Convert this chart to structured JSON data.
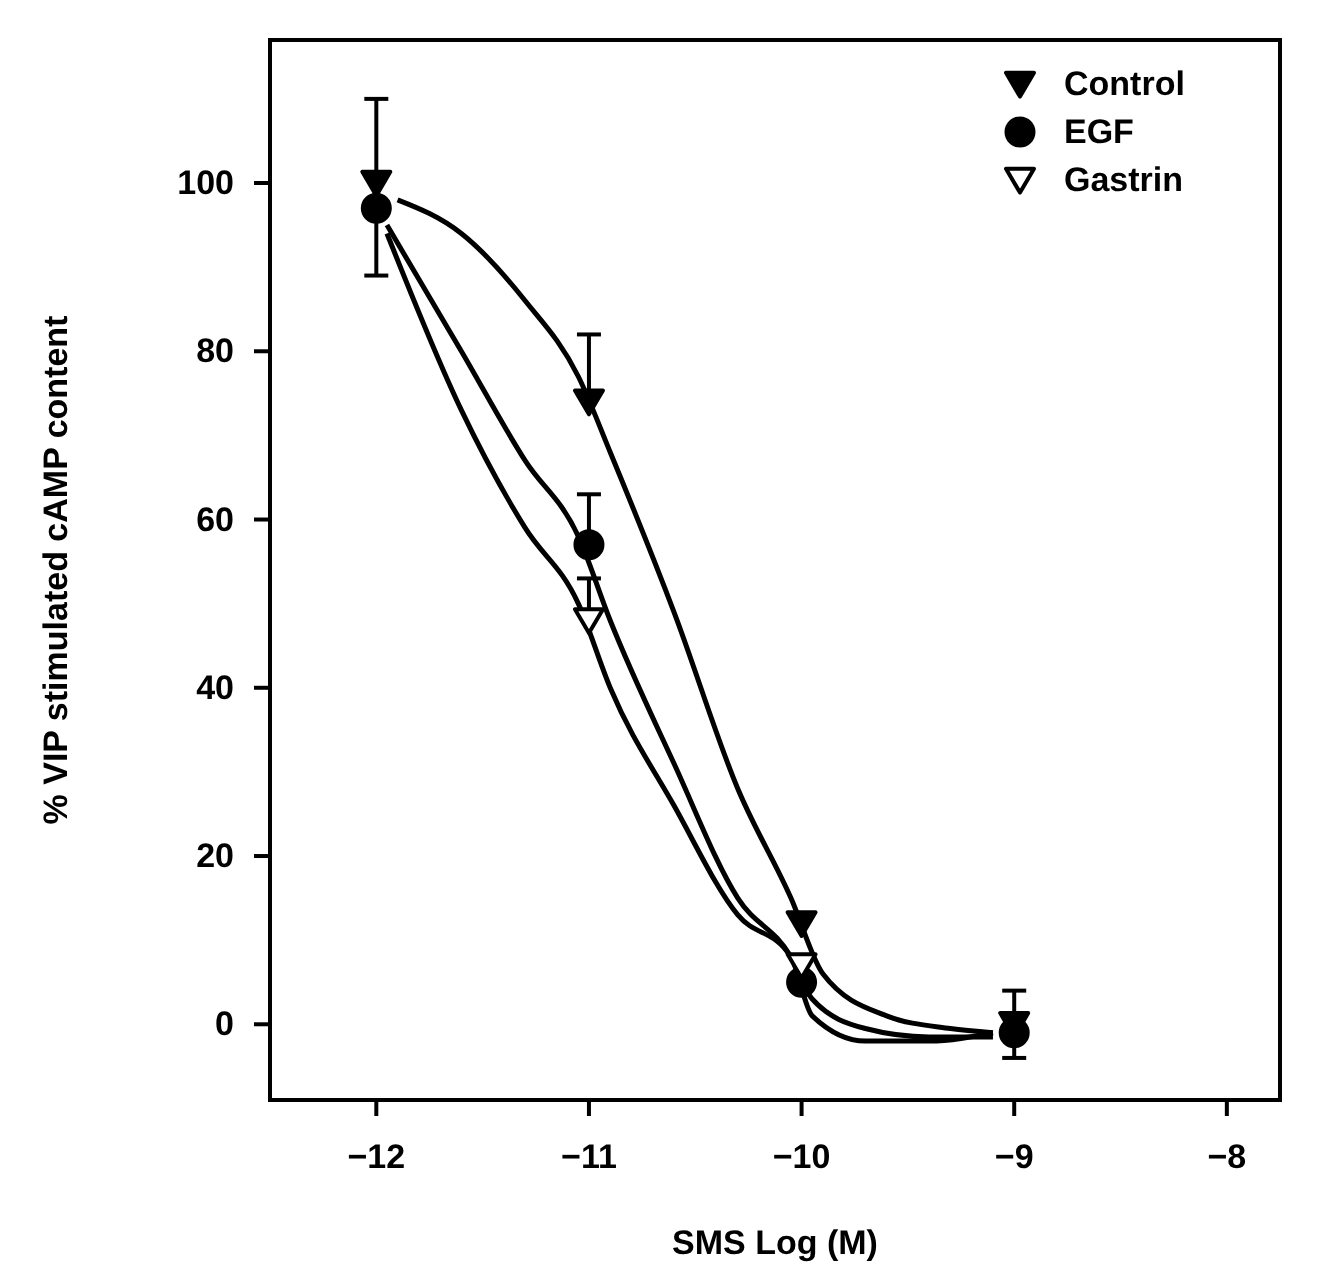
{
  "chart_data": {
    "type": "scatter",
    "xlabel": "SMS Log (M)",
    "ylabel": "% VIP stimulated cAMP content",
    "xlim": [
      -12.5,
      -7.75
    ],
    "xticks": [
      -12,
      -11,
      -10,
      -9,
      -8
    ],
    "ylim": [
      -9,
      117
    ],
    "yticks": [
      0,
      20,
      40,
      60,
      80,
      100
    ],
    "grid": false,
    "legend": "top right",
    "series": [
      {
        "type": "line",
        "color": "#000000",
        "marker": "none",
        "x": [
          -11.9,
          -11.6,
          -11.3,
          -11.05,
          -10.9,
          -10.6,
          -10.3,
          -10.05,
          -9.9,
          -9.6,
          -9.3,
          -9.1
        ],
        "values": [
          98,
          94,
          86,
          77,
          68,
          49,
          28,
          15,
          6,
          1,
          -0.5,
          -1
        ]
      },
      {
        "type": "line",
        "color": "#000000",
        "marker": "none",
        "x": [
          -11.95,
          -11.6,
          -11.3,
          -11.05,
          -10.9,
          -10.6,
          -10.3,
          -10.05,
          -9.95,
          -9.7,
          -9.4,
          -9.1
        ],
        "values": [
          95,
          80,
          67,
          58,
          48,
          31,
          15,
          8,
          3,
          -0.5,
          -1.5,
          -1.5
        ]
      },
      {
        "type": "line",
        "color": "#000000",
        "marker": "none",
        "x": [
          -11.95,
          -11.6,
          -11.3,
          -11.05,
          -10.9,
          -10.6,
          -10.3,
          -10.05,
          -9.95,
          -9.7,
          -9.4,
          -9.1
        ],
        "values": [
          94,
          73,
          59,
          50,
          40,
          26,
          13,
          8,
          1,
          -2,
          -2,
          -1
        ]
      },
      {
        "name": "Control",
        "color": "#000000",
        "marker": "triangle",
        "x": [
          -12,
          -11,
          -10,
          -9
        ],
        "values": [
          100,
          74,
          12,
          0
        ],
        "errors": [
          [
            100,
            110
          ],
          [
            74,
            82
          ],
          null,
          4
        ]
      },
      {
        "name": "EGF",
        "color": "#000000",
        "marker": "circle",
        "x": [
          -12,
          -11,
          -10,
          -9
        ],
        "values": [
          97,
          57,
          5,
          -1
        ],
        "errors": [
          [
            89,
            97
          ],
          [
            57,
            63
          ],
          null,
          null
        ]
      },
      {
        "name": "Gastrin",
        "color": "#ffffff",
        "marker": "triangle",
        "x": [
          -11,
          -10
        ],
        "values": [
          48,
          7
        ],
        "errors": [
          [
            48,
            53
          ],
          null
        ]
      }
    ]
  }
}
